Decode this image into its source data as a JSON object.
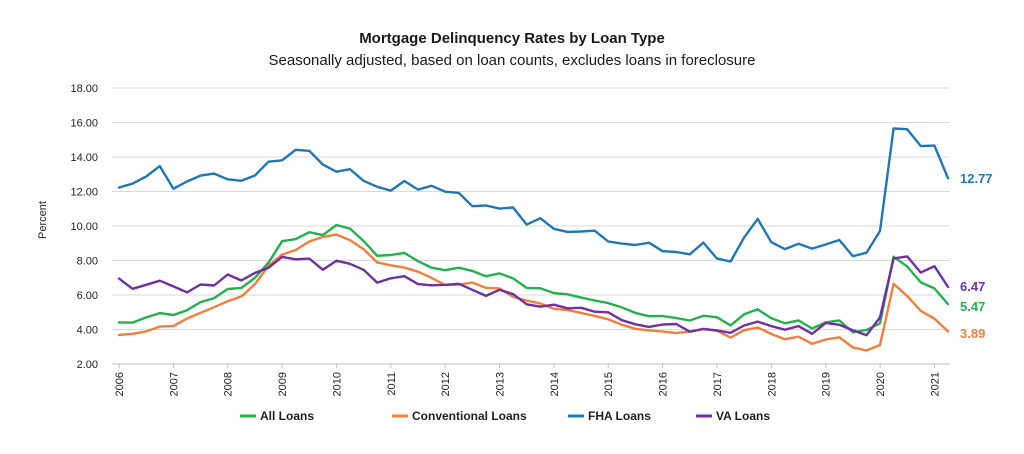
{
  "chart_data": {
    "type": "line",
    "title": "Mortgage Delinquency Rates by Loan Type",
    "subtitle": "Seasonally adjusted, based on loan counts, excludes loans in foreclosure",
    "ylabel": "Percent",
    "xlabel": "",
    "ylim": [
      2.0,
      18.0
    ],
    "yticks": [
      "2.00",
      "4.00",
      "6.00",
      "8.00",
      "10.00",
      "12.00",
      "14.00",
      "16.00",
      "18.00"
    ],
    "xtick_labels": [
      "2006",
      "2007",
      "2008",
      "2009",
      "2010",
      "2011",
      "2012",
      "2013",
      "2014",
      "2015",
      "2016",
      "2017",
      "2018",
      "2019",
      "2020",
      "2021"
    ],
    "x_start_year": 2006,
    "grid": "horizontal",
    "legend": "bottom",
    "series": [
      {
        "name": "All Loans",
        "color": "#22b14c",
        "end_label": "5.47",
        "values": [
          4.41,
          4.4,
          4.7,
          4.95,
          4.84,
          5.12,
          5.59,
          5.82,
          6.35,
          6.41,
          7.0,
          7.88,
          9.12,
          9.24,
          9.64,
          9.47,
          10.06,
          9.85,
          9.13,
          8.27,
          8.32,
          8.44,
          7.96,
          7.58,
          7.44,
          7.58,
          7.4,
          7.09,
          7.25,
          6.96,
          6.41,
          6.39,
          6.11,
          6.04,
          5.85,
          5.68,
          5.53,
          5.28,
          4.96,
          4.77,
          4.78,
          4.66,
          4.52,
          4.8,
          4.71,
          4.24,
          4.88,
          5.17,
          4.65,
          4.36,
          4.53,
          4.06,
          4.42,
          4.53,
          3.84,
          3.97,
          4.36,
          8.22,
          7.65,
          6.73,
          6.38,
          5.47
        ]
      },
      {
        "name": "Conventional Loans",
        "color": "#f07f3c",
        "end_label": "3.89",
        "values": [
          3.68,
          3.75,
          3.89,
          4.17,
          4.2,
          4.64,
          4.96,
          5.29,
          5.64,
          5.92,
          6.62,
          7.69,
          8.34,
          8.61,
          9.1,
          9.37,
          9.5,
          9.18,
          8.65,
          7.89,
          7.72,
          7.59,
          7.35,
          6.99,
          6.58,
          6.6,
          6.72,
          6.42,
          6.38,
          5.89,
          5.68,
          5.51,
          5.2,
          5.13,
          4.96,
          4.79,
          4.59,
          4.28,
          4.04,
          3.95,
          3.88,
          3.8,
          3.87,
          4.04,
          3.93,
          3.53,
          3.96,
          4.12,
          3.74,
          3.44,
          3.58,
          3.17,
          3.42,
          3.55,
          2.96,
          2.78,
          3.1,
          6.65,
          5.94,
          5.08,
          4.63,
          3.89
        ]
      },
      {
        "name": "FHA Loans",
        "color": "#1f77b8",
        "end_label": "12.77",
        "values": [
          12.23,
          12.46,
          12.87,
          13.47,
          12.16,
          12.58,
          12.92,
          13.04,
          12.71,
          12.62,
          12.93,
          13.73,
          13.81,
          14.42,
          14.36,
          13.56,
          13.15,
          13.29,
          12.62,
          12.27,
          12.05,
          12.61,
          12.11,
          12.33,
          11.99,
          11.92,
          11.15,
          11.19,
          11.01,
          11.07,
          10.08,
          10.45,
          9.84,
          9.66,
          9.68,
          9.73,
          9.1,
          8.98,
          8.9,
          9.03,
          8.54,
          8.49,
          8.36,
          9.04,
          8.11,
          7.94,
          9.34,
          10.41,
          9.06,
          8.66,
          8.97,
          8.69,
          8.93,
          9.19,
          8.25,
          8.45,
          9.71,
          15.65,
          15.61,
          14.63,
          14.66,
          12.77
        ]
      },
      {
        "name": "VA Loans",
        "color": "#7030a0",
        "end_label": "6.47",
        "values": [
          6.95,
          6.36,
          6.59,
          6.83,
          6.5,
          6.15,
          6.61,
          6.55,
          7.19,
          6.84,
          7.28,
          7.58,
          8.21,
          8.07,
          8.11,
          7.46,
          7.99,
          7.81,
          7.46,
          6.72,
          6.97,
          7.09,
          6.63,
          6.56,
          6.59,
          6.65,
          6.3,
          5.95,
          6.3,
          6.05,
          5.46,
          5.32,
          5.44,
          5.23,
          5.26,
          5.03,
          5.0,
          4.54,
          4.3,
          4.15,
          4.29,
          4.32,
          3.87,
          4.03,
          3.94,
          3.81,
          4.23,
          4.46,
          4.2,
          3.99,
          4.2,
          3.75,
          4.38,
          4.27,
          3.96,
          3.67,
          4.7,
          8.12,
          8.24,
          7.3,
          7.67,
          6.47
        ]
      }
    ]
  }
}
